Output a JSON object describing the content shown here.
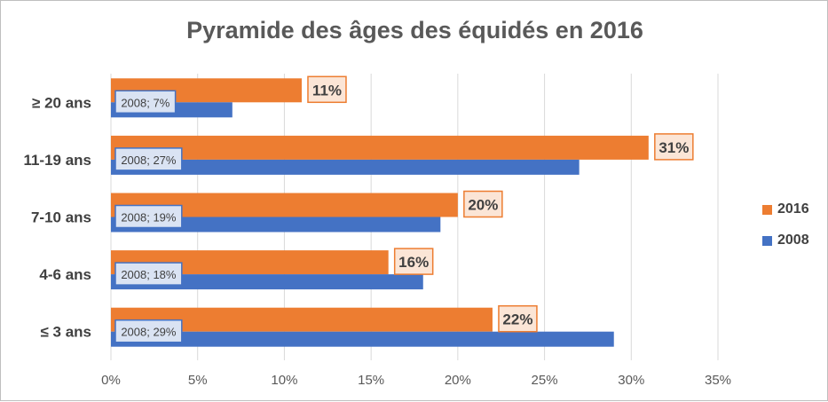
{
  "chart_data": {
    "type": "bar",
    "orientation": "horizontal",
    "title": "Pyramide des âges des équidés en 2016",
    "categories": [
      "≥ 20 ans",
      "11-19 ans",
      "7-10 ans",
      "4-6 ans",
      "≤ 3 ans"
    ],
    "series": [
      {
        "name": "2016",
        "color": "#ED7D31",
        "values": [
          11,
          31,
          20,
          16,
          22
        ],
        "labels": [
          "11%",
          "31%",
          "20%",
          "16%",
          "22%"
        ]
      },
      {
        "name": "2008",
        "color": "#4472C4",
        "values": [
          7,
          27,
          19,
          18,
          29
        ],
        "labels": [
          "2008; 7%",
          "2008; 27%",
          "2008; 19%",
          "2008; 18%",
          "2008; 29%"
        ]
      }
    ],
    "xlim": [
      0,
      35
    ],
    "xticks": [
      "0%",
      "5%",
      "10%",
      "15%",
      "20%",
      "25%",
      "30%",
      "35%"
    ],
    "grid": true,
    "legend_position": "right",
    "legend": [
      "2016",
      "2008"
    ]
  }
}
